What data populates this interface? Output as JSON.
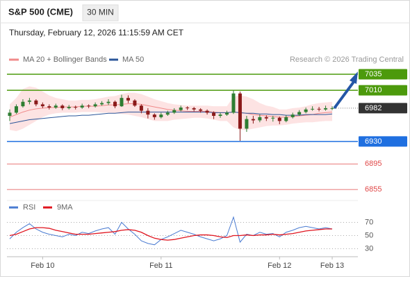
{
  "header": {
    "symbol": "S&P 500 (CME)",
    "interval": "30 MIN",
    "timestamp": "Thursday, February 12, 2026 11:15:59 AM CET"
  },
  "chart_data": [
    {
      "type": "candlestick",
      "credit": "Research © 2026 Trading Central",
      "ylim": [
        6840,
        7048
      ],
      "up_color": "#2e7d32",
      "down_color": "#8b1a1a",
      "categories": [
        null,
        null,
        null,
        null,
        null,
        "Feb 10",
        null,
        null,
        null,
        null,
        null,
        null,
        null,
        null,
        null,
        null,
        null,
        null,
        null,
        null,
        null,
        null,
        null,
        "Feb 11",
        null,
        null,
        null,
        null,
        null,
        null,
        null,
        null,
        null,
        null,
        null,
        null,
        null,
        null,
        null,
        null,
        null,
        "Feb 12",
        null,
        null,
        null,
        null,
        null,
        null,
        null,
        "Feb 13"
      ],
      "ohlc": [
        [
          6970,
          6980,
          6962,
          6975
        ],
        [
          6975,
          6988,
          6973,
          6985
        ],
        [
          6985,
          6996,
          6983,
          6992
        ],
        [
          6992,
          6998,
          6988,
          6994
        ],
        [
          6994,
          6996,
          6985,
          6988
        ],
        [
          6988,
          6991,
          6982,
          6985
        ],
        [
          6985,
          6988,
          6980,
          6983
        ],
        [
          6983,
          6989,
          6981,
          6986
        ],
        [
          6986,
          6988,
          6979,
          6982
        ],
        [
          6982,
          6987,
          6980,
          6984
        ],
        [
          6984,
          6986,
          6980,
          6983
        ],
        [
          6983,
          6989,
          6981,
          6986
        ],
        [
          6986,
          6988,
          6982,
          6985
        ],
        [
          6985,
          6991,
          6983,
          6988
        ],
        [
          6988,
          6993,
          6986,
          6990
        ],
        [
          6990,
          6996,
          6987,
          6992
        ],
        [
          6992,
          6994,
          6982,
          6985
        ],
        [
          6985,
          7003,
          6984,
          6998
        ],
        [
          6998,
          7002,
          6990,
          6994
        ],
        [
          6994,
          6996,
          6984,
          6986
        ],
        [
          6986,
          6988,
          6974,
          6978
        ],
        [
          6978,
          6982,
          6966,
          6972
        ],
        [
          6972,
          6974,
          6964,
          6968
        ],
        [
          6968,
          6975,
          6966,
          6972
        ],
        [
          6972,
          6978,
          6970,
          6975
        ],
        [
          6975,
          6982,
          6973,
          6979
        ],
        [
          6979,
          6986,
          6977,
          6983
        ],
        [
          6983,
          6985,
          6979,
          6982
        ],
        [
          6982,
          6984,
          6977,
          6980
        ],
        [
          6980,
          6982,
          6975,
          6978
        ],
        [
          6978,
          6980,
          6972,
          6975
        ],
        [
          6975,
          6977,
          6965,
          6970
        ],
        [
          6970,
          6975,
          6967,
          6972
        ],
        [
          6972,
          6978,
          6970,
          6975
        ],
        [
          6975,
          7010,
          6973,
          7005
        ],
        [
          7005,
          7008,
          6931,
          6950
        ],
        [
          6950,
          6970,
          6945,
          6965
        ],
        [
          6965,
          6970,
          6958,
          6963
        ],
        [
          6963,
          6972,
          6960,
          6968
        ],
        [
          6968,
          6971,
          6962,
          6966
        ],
        [
          6966,
          6970,
          6961,
          6967
        ],
        [
          6967,
          6969,
          6957,
          6962
        ],
        [
          6962,
          6971,
          6960,
          6968
        ],
        [
          6968,
          6975,
          6966,
          6972
        ],
        [
          6972,
          6979,
          6970,
          6976
        ],
        [
          6976,
          6983,
          6974,
          6980
        ],
        [
          6980,
          6985,
          6978,
          6981
        ],
        [
          6981,
          6984,
          6977,
          6980
        ],
        [
          6980,
          6986,
          6978,
          6982
        ],
        [
          6982,
          6985,
          6979,
          6982
        ]
      ],
      "series": [
        {
          "name": "MA 20 + Bollinger Bands",
          "color": "#f08a8a",
          "band_color": "#fcdcdc",
          "values": [
            6968,
            6972,
            6976,
            6979,
            6981,
            6982,
            6983,
            6983,
            6984,
            6984,
            6984,
            6985,
            6985,
            6985,
            6986,
            6987,
            6987,
            6988,
            6989,
            6989,
            6988,
            6986,
            6984,
            6982,
            6980,
            6979,
            6978,
            6977,
            6977,
            6977,
            6977,
            6976,
            6975,
            6975,
            6976,
            6975,
            6974,
            6972,
            6971,
            6970,
            6969,
            6968,
            6968,
            6969,
            6970,
            6971,
            6972,
            6974,
            6975,
            6976
          ],
          "upper": [
            6988,
            6998,
            7012,
            7016,
            7014,
            7008,
            7002,
            6998,
            6996,
            6994,
            6994,
            6995,
            6995,
            6996,
            6998,
            7000,
            7001,
            7004,
            7006,
            7006,
            7004,
            7000,
            6996,
            6993,
            6990,
            6988,
            6987,
            6986,
            6986,
            6986,
            6986,
            6985,
            6985,
            6985,
            7000,
            7002,
            7000,
            6996,
            6990,
            6986,
            6984,
            6980,
            6980,
            6982,
            6983,
            6985,
            6988,
            6990,
            6991,
            6992
          ],
          "lower": [
            6948,
            6946,
            6950,
            6956,
            6962,
            6968,
            6972,
            6974,
            6975,
            6975,
            6975,
            6976,
            6976,
            6976,
            6975,
            6975,
            6974,
            6973,
            6972,
            6970,
            6968,
            6965,
            6962,
            6962,
            6962,
            6964,
            6965,
            6966,
            6967,
            6967,
            6966,
            6964,
            6962,
            6962,
            6952,
            6948,
            6948,
            6950,
            6952,
            6954,
            6955,
            6955,
            6956,
            6958,
            6959,
            6960,
            6960,
            6961,
            6962,
            6962
          ]
        },
        {
          "name": "MA 50",
          "color": "#2a5599",
          "values": [
            6958,
            6960,
            6962,
            6964,
            6965,
            6966,
            6967,
            6968,
            6969,
            6970,
            6970,
            6971,
            6971,
            6972,
            6973,
            6974,
            6974,
            6975,
            6976,
            6976,
            6976,
            6976,
            6976,
            6976,
            6976,
            6976,
            6976,
            6976,
            6976,
            6976,
            6976,
            6975,
            6975,
            6975,
            6976,
            6975,
            6974,
            6974,
            6973,
            6973,
            6972,
            6972,
            6971,
            6971,
            6971,
            6972,
            6972,
            6972,
            6972,
            6973
          ]
        }
      ],
      "levels": [
        {
          "value": 7035,
          "color": "#4c9a0c",
          "style": "box"
        },
        {
          "value": 7010,
          "color": "#4c9a0c",
          "style": "box"
        },
        {
          "value": 6982,
          "color": "#333333",
          "style": "current"
        },
        {
          "value": 6930,
          "color": "#1f6fe0",
          "style": "box"
        },
        {
          "value": 6895,
          "color": "#e04848",
          "style": "text"
        },
        {
          "value": 6855,
          "color": "#e04848",
          "style": "text"
        }
      ]
    },
    {
      "type": "line",
      "ylim": [
        20,
        80
      ],
      "yticks": [
        30,
        50,
        70
      ],
      "grid": true,
      "series": [
        {
          "name": "RSI",
          "color": "#4a7bd1",
          "values": [
            45,
            55,
            62,
            68,
            60,
            55,
            52,
            50,
            48,
            52,
            50,
            55,
            53,
            57,
            60,
            62,
            52,
            70,
            60,
            52,
            42,
            38,
            36,
            44,
            48,
            53,
            58,
            55,
            52,
            48,
            45,
            42,
            45,
            50,
            78,
            40,
            52,
            50,
            55,
            52,
            53,
            48,
            55,
            58,
            62,
            64,
            62,
            60,
            62,
            60
          ]
        },
        {
          "name": "9MA",
          "color": "#e0141e",
          "values": [
            50,
            52,
            56,
            60,
            62,
            62,
            61,
            58,
            56,
            54,
            52,
            52,
            52,
            53,
            54,
            55,
            56,
            58,
            59,
            58,
            55,
            50,
            46,
            44,
            43,
            44,
            46,
            48,
            50,
            51,
            51,
            50,
            48,
            47,
            50,
            50,
            51,
            50,
            51,
            51,
            52,
            51,
            52,
            53,
            55,
            57,
            58,
            59,
            60,
            60
          ]
        }
      ]
    }
  ]
}
